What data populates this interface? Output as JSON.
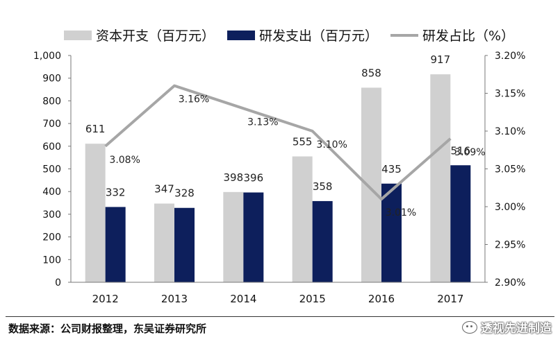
{
  "chart_data": {
    "type": "bar",
    "categories": [
      "2012",
      "2013",
      "2014",
      "2015",
      "2016",
      "2017"
    ],
    "series": [
      {
        "name": "资本开支（百万元）",
        "kind": "bar",
        "axis": "left",
        "color": "#d0d0d0",
        "values": [
          611,
          347,
          398,
          555,
          858,
          917
        ]
      },
      {
        "name": "研发支出（百万元）",
        "kind": "bar",
        "axis": "left",
        "color": "#0d1f5c",
        "values": [
          332,
          328,
          396,
          358,
          435,
          516
        ]
      },
      {
        "name": "研发占比（%）",
        "kind": "line",
        "axis": "right",
        "color": "#a6a6a6",
        "values": [
          3.08,
          3.16,
          3.13,
          3.1,
          3.01,
          3.09
        ]
      }
    ],
    "y_left": {
      "min": 0,
      "max": 1000,
      "ticks": [
        "0",
        "100",
        "200",
        "300",
        "400",
        "500",
        "600",
        "700",
        "800",
        "900",
        "1,000"
      ]
    },
    "y_right": {
      "min": 2.9,
      "max": 3.2,
      "ticks": [
        "2.90%",
        "2.95%",
        "3.00%",
        "3.05%",
        "3.10%",
        "3.15%",
        "3.20%"
      ]
    },
    "line_labels": [
      "3.08%",
      "3.16%",
      "3.13%",
      "3.10%",
      "3.01%",
      "3.09%"
    ],
    "legend_position": "top",
    "grid": false
  },
  "footer": {
    "source": "数据来源：公司财报整理，东吴证券研究所",
    "watermark": "透视先进制造"
  }
}
